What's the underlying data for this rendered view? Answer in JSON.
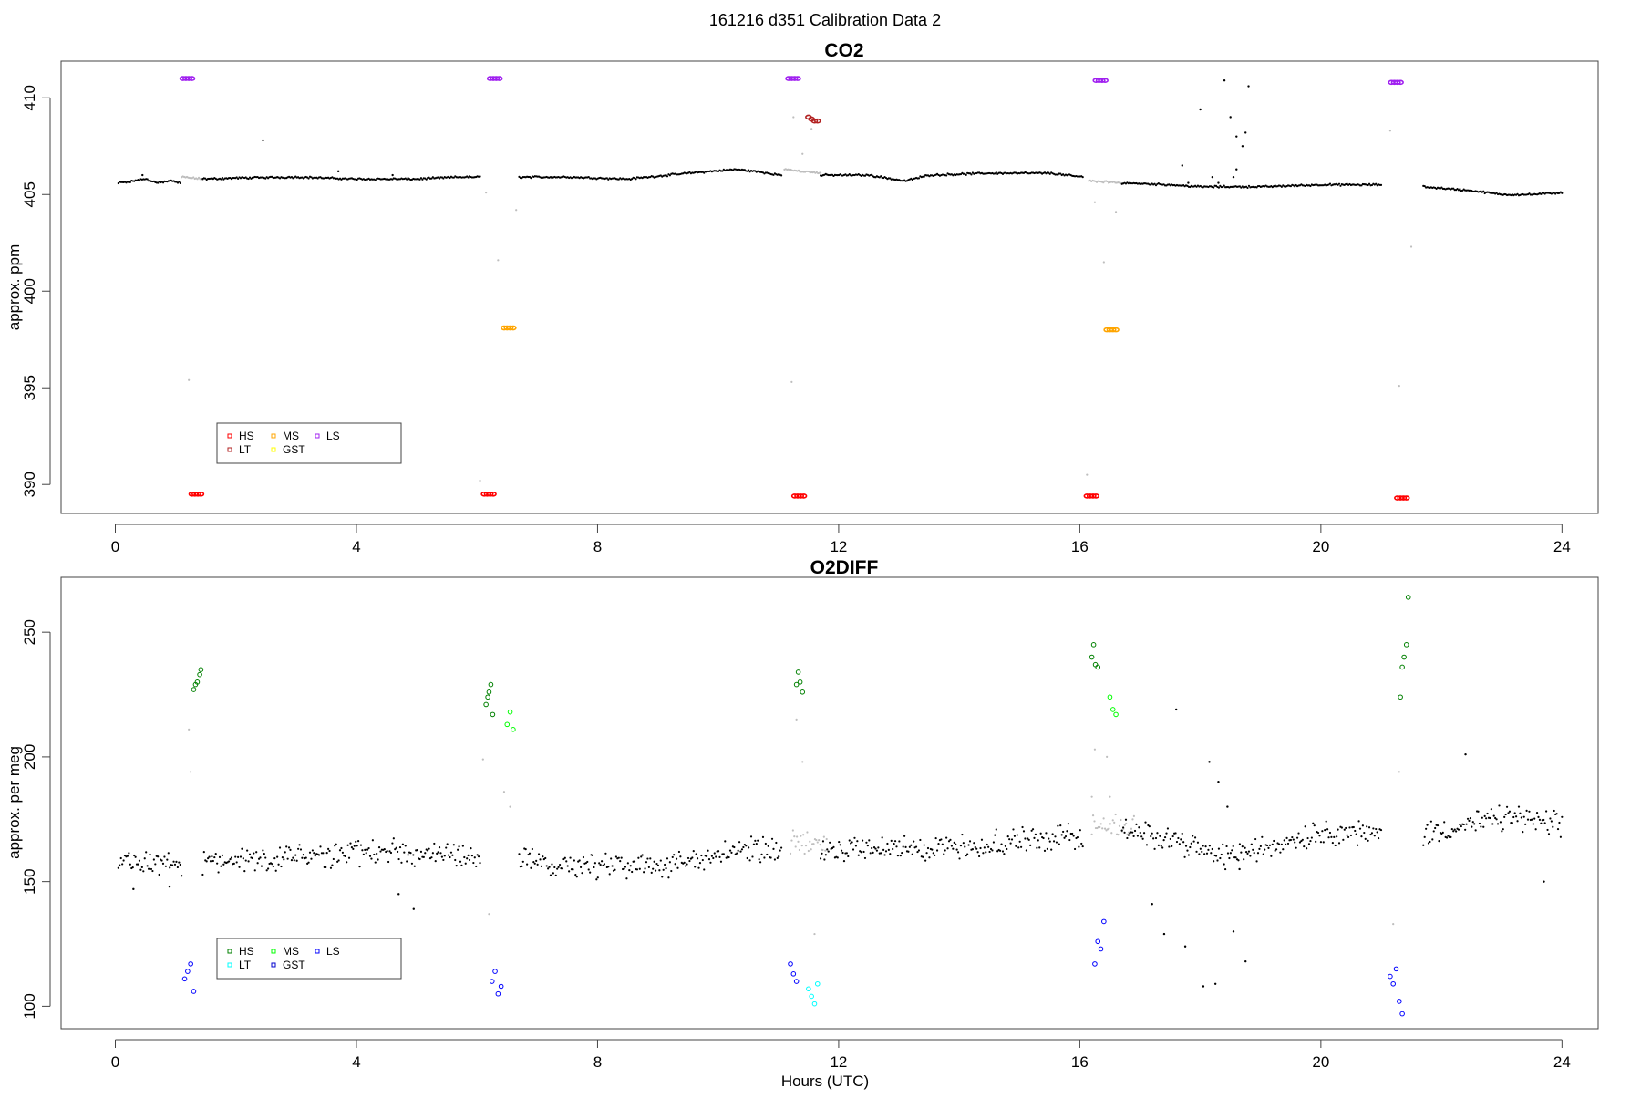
{
  "figure_title": "161216   d351   Calibration Data 2",
  "colors": {
    "HS_co2": "#ff0000",
    "MS_co2": "#ffa500",
    "LS_co2": "#a020f0",
    "LT_co2": "#b22222",
    "GST_co2": "#ffff00",
    "HS_o2": "#008000",
    "MS_o2": "#00ff00",
    "LS_o2": "#0000ff",
    "LT_o2": "#00ffff",
    "GST_o2": "#0000cd",
    "ambient": "#000000",
    "flush": "#bebebe"
  },
  "chart_data": [
    {
      "type": "scatter",
      "title": "CO2",
      "xlabel": "",
      "ylabel": "approx. ppm",
      "xlim": [
        -0.9,
        24.6
      ],
      "ylim": [
        388.5,
        411.9
      ],
      "xticks": [
        0,
        4,
        8,
        12,
        16,
        20,
        24
      ],
      "yticks": [
        390,
        395,
        400,
        405,
        410
      ],
      "legend": {
        "placement": "bottom-left",
        "entries": [
          "HS",
          "MS",
          "LS",
          "LT",
          "GST"
        ]
      },
      "ambient_segments": [
        {
          "x": [
            0.05,
            0.3,
            0.5,
            0.7,
            0.9,
            1.08
          ],
          "y": [
            405.6,
            405.7,
            405.8,
            405.6,
            405.7,
            405.6
          ]
        },
        {
          "x": [
            1.45,
            2.0,
            3.0,
            4.0,
            5.0,
            5.7,
            6.05
          ],
          "y": [
            405.8,
            405.85,
            405.9,
            405.8,
            405.8,
            405.9,
            405.9
          ]
        },
        {
          "x": [
            6.7,
            7.5,
            8.5,
            9.5,
            10.3,
            10.6,
            11.05
          ],
          "y": [
            405.9,
            405.9,
            405.8,
            406.1,
            406.3,
            406.2,
            406.0
          ]
        },
        {
          "x": [
            11.7,
            12.5,
            13.1,
            13.5,
            14.5,
            15.5,
            16.05
          ],
          "y": [
            406.0,
            406.0,
            405.7,
            406.0,
            406.1,
            406.1,
            405.9
          ]
        },
        {
          "x": [
            16.7,
            17.5,
            18.0,
            19.0,
            20.0,
            21.0
          ],
          "y": [
            405.6,
            405.5,
            405.4,
            405.4,
            405.5,
            405.5
          ]
        },
        {
          "x": [
            21.7,
            22.5,
            23.0,
            23.5,
            24.0
          ],
          "y": [
            405.4,
            405.2,
            405.0,
            405.0,
            405.1
          ]
        }
      ],
      "flush_segments": [
        {
          "x": [
            1.1,
            1.45
          ],
          "y": [
            405.9,
            405.8
          ]
        },
        {
          "x": [
            11.1,
            11.7
          ],
          "y": [
            406.3,
            406.1
          ]
        },
        {
          "x": [
            16.15,
            16.7
          ],
          "y": [
            405.7,
            405.6
          ]
        }
      ],
      "scattered_points": {
        "x": [
          0.45,
          2.45,
          3.7,
          4.6,
          17.7,
          17.8,
          18.0,
          18.2,
          18.3,
          18.4,
          18.5,
          18.6,
          18.7,
          18.75,
          18.8,
          18.6,
          18.55
        ],
        "y": [
          406.0,
          407.8,
          406.2,
          406.0,
          406.5,
          405.6,
          409.4,
          405.9,
          405.6,
          410.9,
          409.0,
          408.0,
          407.5,
          408.2,
          410.6,
          406.3,
          405.9
        ]
      },
      "flush_points": {
        "x": [
          1.22,
          6.05,
          6.15,
          6.35,
          6.65,
          11.22,
          11.25,
          11.4,
          11.55,
          16.12,
          16.25,
          16.4,
          16.6,
          21.15,
          21.3,
          21.5
        ],
        "y": [
          395.4,
          390.2,
          405.1,
          401.6,
          404.2,
          395.3,
          409.0,
          407.1,
          408.4,
          390.5,
          404.6,
          401.5,
          404.1,
          408.3,
          395.1,
          402.3
        ]
      },
      "series": [
        {
          "name": "HS",
          "x": [
            1.27,
            1.32,
            1.37,
            1.42,
            6.12,
            6.17,
            6.22,
            6.27,
            11.27,
            11.32,
            11.37,
            11.42,
            16.12,
            16.17,
            16.22,
            16.27,
            21.27,
            21.32,
            21.37,
            21.42
          ],
          "y": [
            389.5,
            389.5,
            389.5,
            389.5,
            389.5,
            389.5,
            389.5,
            389.5,
            389.4,
            389.4,
            389.4,
            389.4,
            389.4,
            389.4,
            389.4,
            389.4,
            389.3,
            389.3,
            389.3,
            389.3
          ]
        },
        {
          "name": "MS",
          "x": [
            6.45,
            6.5,
            6.55,
            6.6,
            16.45,
            16.5,
            16.55,
            16.6
          ],
          "y": [
            398.1,
            398.1,
            398.1,
            398.1,
            398.0,
            398.0,
            398.0,
            398.0
          ]
        },
        {
          "name": "LS",
          "x": [
            1.12,
            1.17,
            1.22,
            1.27,
            6.22,
            6.27,
            6.32,
            6.37,
            11.17,
            11.22,
            11.27,
            11.32,
            16.27,
            16.32,
            16.37,
            16.42,
            21.17,
            21.22,
            21.27,
            21.32
          ],
          "y": [
            411.0,
            411.0,
            411.0,
            411.0,
            411.0,
            411.0,
            411.0,
            411.0,
            411.0,
            411.0,
            411.0,
            411.0,
            410.9,
            410.9,
            410.9,
            410.9,
            410.8,
            410.8,
            410.8,
            410.8
          ]
        },
        {
          "name": "LT",
          "x": [
            11.5,
            11.55,
            11.6,
            11.65
          ],
          "y": [
            409.0,
            408.9,
            408.8,
            408.8
          ]
        },
        {
          "name": "GST",
          "x": [],
          "y": []
        }
      ]
    },
    {
      "type": "scatter",
      "title": "O2DIFF",
      "xlabel": "Hours (UTC)",
      "ylabel": "approx. per meg",
      "xlim": [
        -0.9,
        24.6
      ],
      "ylim": [
        91,
        272
      ],
      "xticks": [
        0,
        4,
        8,
        12,
        16,
        20,
        24
      ],
      "yticks": [
        100,
        150,
        200,
        250
      ],
      "legend": {
        "placement": "bottom-left",
        "entries": [
          "HS",
          "MS",
          "LS",
          "LT",
          "GST"
        ]
      },
      "ambient_segments": [
        {
          "x": [
            0.05,
            0.5,
            1.1
          ],
          "y": [
            159,
            158,
            157
          ]
        },
        {
          "x": [
            1.45,
            3.0,
            4.5,
            6.05
          ],
          "y": [
            158,
            160,
            162,
            160
          ]
        },
        {
          "x": [
            6.7,
            8.0,
            9.5,
            10.3,
            11.05
          ],
          "y": [
            158,
            156,
            157,
            163,
            163
          ]
        },
        {
          "x": [
            11.7,
            13.0,
            14.5,
            16.05
          ],
          "y": [
            162,
            163,
            165,
            169
          ]
        },
        {
          "x": [
            16.7,
            17.5,
            18.3,
            19.0,
            20.0,
            21.0
          ],
          "y": [
            170,
            168,
            160,
            163,
            170,
            169
          ]
        },
        {
          "x": [
            21.7,
            22.5,
            23.2,
            24.0
          ],
          "y": [
            169,
            173,
            176,
            172
          ]
        }
      ],
      "flush_segments": [
        {
          "x": [
            11.2,
            11.8
          ],
          "y": [
            165,
            165
          ]
        },
        {
          "x": [
            16.2,
            16.9
          ],
          "y": [
            172,
            172
          ]
        }
      ],
      "scattered_points": {
        "x": [
          0.3,
          0.9,
          4.7,
          4.95,
          17.2,
          17.4,
          17.6,
          17.75,
          18.05,
          18.15,
          18.25,
          18.3,
          18.45,
          18.55,
          18.65,
          18.75,
          22.4,
          23.7
        ],
        "y": [
          147,
          148,
          145,
          139,
          141,
          129,
          219,
          124,
          108,
          198,
          109,
          190,
          180,
          130,
          155,
          118,
          201,
          150
        ]
      },
      "flush_points": {
        "x": [
          1.22,
          1.25,
          6.1,
          6.2,
          6.45,
          6.55,
          11.3,
          11.4,
          11.6,
          16.2,
          16.25,
          16.45,
          16.5,
          21.2,
          21.3
        ],
        "y": [
          211,
          194,
          199,
          137,
          186,
          180,
          215,
          198,
          129,
          184,
          203,
          200,
          184,
          133,
          194
        ]
      },
      "series": [
        {
          "name": "HS",
          "x": [
            1.3,
            1.33,
            1.36,
            1.4,
            1.42,
            6.15,
            6.18,
            6.2,
            6.23,
            6.26,
            11.3,
            11.33,
            11.36,
            11.4,
            16.2,
            16.23,
            16.26,
            16.3,
            21.32,
            21.35,
            21.38,
            21.42,
            21.45
          ],
          "y": [
            227,
            229,
            230,
            233,
            235,
            221,
            224,
            226,
            229,
            217,
            229,
            234,
            230,
            226,
            240,
            245,
            237,
            236,
            224,
            236,
            240,
            245,
            264
          ]
        },
        {
          "name": "MS",
          "x": [
            6.5,
            6.55,
            6.6,
            16.5,
            16.55,
            16.6
          ],
          "y": [
            213,
            218,
            211,
            224,
            219,
            217
          ]
        },
        {
          "name": "LS",
          "x": [
            1.15,
            1.2,
            1.25,
            1.3,
            6.25,
            6.3,
            6.35,
            6.4,
            11.2,
            11.25,
            11.3,
            16.25,
            16.3,
            16.35,
            16.4,
            21.15,
            21.2,
            21.25,
            21.3,
            21.35
          ],
          "y": [
            111,
            114,
            117,
            106,
            110,
            114,
            105,
            108,
            117,
            113,
            110,
            117,
            126,
            123,
            134,
            112,
            109,
            115,
            102,
            97
          ]
        },
        {
          "name": "LT",
          "x": [
            11.5,
            11.55,
            11.6,
            11.65
          ],
          "y": [
            107,
            104,
            101,
            109
          ]
        },
        {
          "name": "GST",
          "x": [],
          "y": []
        }
      ]
    }
  ]
}
